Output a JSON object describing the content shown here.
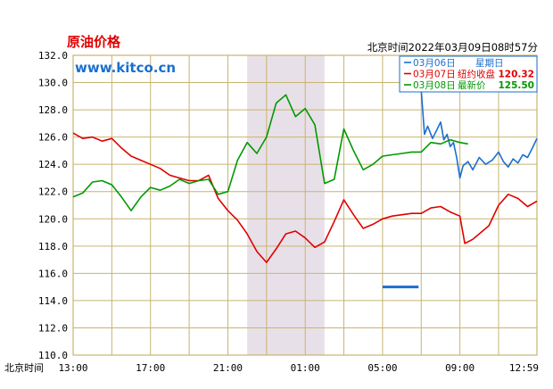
{
  "title": "原油价格",
  "logo_text": "www.kitco.cn",
  "timestamp": "北京时间2022年03月09日08时57分",
  "xaxis_prefix": "北京时间",
  "legend": [
    {
      "date": "03月06日",
      "label": "星期日",
      "value": "",
      "color": "#1a6fd1"
    },
    {
      "date": "03月07日",
      "label": "纽约收盘",
      "value": "120.32",
      "color": "#e00000"
    },
    {
      "date": "03月08日",
      "label": "最新价",
      "value": "125.50",
      "color": "#009900"
    }
  ],
  "colors": {
    "frame": "#c8b470",
    "shade": "#e8e0e8",
    "title": "#e00000",
    "logo": "#1a6fd1"
  },
  "chart_data": {
    "type": "line",
    "title": "原油价格",
    "xlabel": "北京时间",
    "ylabel": "",
    "ylim": [
      110,
      132
    ],
    "y_ticks": [
      "132.0",
      "130.0",
      "128.0",
      "126.0",
      "124.0",
      "122.0",
      "120.0",
      "118.0",
      "116.0",
      "114.0",
      "112.0",
      "110.0"
    ],
    "x_ticks": [
      "13:00",
      "17:00",
      "21:00",
      "01:00",
      "05:00",
      "09:00",
      "12:59"
    ],
    "shaded_region": [
      "22:00",
      "02:00"
    ],
    "grid": true,
    "legend_position": "top-right",
    "series": [
      {
        "name": "03月06日",
        "color": "#1a6fd1",
        "points": [
          [
            "05:00",
            115.0
          ],
          [
            "07:00",
            115.0
          ],
          [
            "07:00",
            129.4
          ],
          [
            "07:10",
            126.2
          ],
          [
            "07:20",
            126.8
          ],
          [
            "07:35",
            125.9
          ],
          [
            "07:50",
            126.6
          ],
          [
            "08:00",
            127.1
          ],
          [
            "08:10",
            125.8
          ],
          [
            "08:20",
            126.2
          ],
          [
            "08:30",
            125.3
          ],
          [
            "08:40",
            125.6
          ],
          [
            "08:50",
            124.5
          ],
          [
            "09:00",
            123.0
          ],
          [
            "09:10",
            123.9
          ],
          [
            "09:25",
            124.2
          ],
          [
            "09:40",
            123.6
          ],
          [
            "10:00",
            124.5
          ],
          [
            "10:20",
            124.0
          ],
          [
            "10:40",
            124.3
          ],
          [
            "11:00",
            124.9
          ],
          [
            "11:15",
            124.2
          ],
          [
            "11:30",
            123.8
          ],
          [
            "11:45",
            124.4
          ],
          [
            "12:00",
            124.1
          ],
          [
            "12:15",
            124.7
          ],
          [
            "12:30",
            124.5
          ],
          [
            "12:45",
            125.2
          ],
          [
            "12:59",
            125.9
          ]
        ]
      },
      {
        "name": "03月07日",
        "color": "#e00000",
        "points": [
          [
            "13:00",
            126.3
          ],
          [
            "13:30",
            125.9
          ],
          [
            "14:00",
            126.0
          ],
          [
            "14:30",
            125.7
          ],
          [
            "15:00",
            125.9
          ],
          [
            "15:30",
            125.2
          ],
          [
            "16:00",
            124.6
          ],
          [
            "16:30",
            124.3
          ],
          [
            "17:00",
            124.0
          ],
          [
            "17:30",
            123.7
          ],
          [
            "18:00",
            123.2
          ],
          [
            "18:30",
            123.0
          ],
          [
            "19:00",
            122.8
          ],
          [
            "19:30",
            122.8
          ],
          [
            "20:00",
            123.2
          ],
          [
            "20:30",
            121.5
          ],
          [
            "21:00",
            120.6
          ],
          [
            "21:30",
            119.9
          ],
          [
            "22:00",
            118.9
          ],
          [
            "22:30",
            117.6
          ],
          [
            "23:00",
            116.8
          ],
          [
            "23:30",
            117.8
          ],
          [
            "00:00",
            118.9
          ],
          [
            "00:30",
            119.1
          ],
          [
            "01:00",
            118.6
          ],
          [
            "01:30",
            117.9
          ],
          [
            "02:00",
            118.3
          ],
          [
            "02:30",
            119.8
          ],
          [
            "03:00",
            121.4
          ],
          [
            "03:30",
            120.3
          ],
          [
            "04:00",
            119.3
          ],
          [
            "04:30",
            119.6
          ],
          [
            "05:00",
            120.0
          ],
          [
            "05:30",
            120.2
          ],
          [
            "06:00",
            120.3
          ],
          [
            "06:30",
            120.4
          ],
          [
            "07:00",
            120.4
          ],
          [
            "07:30",
            120.8
          ],
          [
            "08:00",
            120.9
          ],
          [
            "08:30",
            120.5
          ],
          [
            "09:00",
            120.2
          ],
          [
            "09:15",
            118.2
          ],
          [
            "09:40",
            118.5
          ],
          [
            "10:00",
            118.9
          ],
          [
            "10:30",
            119.5
          ],
          [
            "11:00",
            121.0
          ],
          [
            "11:30",
            121.8
          ],
          [
            "12:00",
            121.5
          ],
          [
            "12:30",
            120.9
          ],
          [
            "12:59",
            121.3
          ]
        ]
      },
      {
        "name": "03月08日",
        "color": "#009900",
        "points": [
          [
            "13:00",
            121.6
          ],
          [
            "13:30",
            121.9
          ],
          [
            "14:00",
            122.7
          ],
          [
            "14:30",
            122.8
          ],
          [
            "15:00",
            122.5
          ],
          [
            "15:30",
            121.6
          ],
          [
            "16:00",
            120.6
          ],
          [
            "16:30",
            121.6
          ],
          [
            "17:00",
            122.3
          ],
          [
            "17:30",
            122.1
          ],
          [
            "18:00",
            122.4
          ],
          [
            "18:30",
            122.9
          ],
          [
            "19:00",
            122.6
          ],
          [
            "19:30",
            122.8
          ],
          [
            "20:00",
            122.9
          ],
          [
            "20:30",
            121.8
          ],
          [
            "21:00",
            122.0
          ],
          [
            "21:30",
            124.3
          ],
          [
            "22:00",
            125.6
          ],
          [
            "22:30",
            124.8
          ],
          [
            "23:00",
            126.0
          ],
          [
            "23:30",
            128.5
          ],
          [
            "00:00",
            129.1
          ],
          [
            "00:30",
            127.5
          ],
          [
            "01:00",
            128.1
          ],
          [
            "01:30",
            126.9
          ],
          [
            "02:00",
            122.6
          ],
          [
            "02:30",
            122.9
          ],
          [
            "03:00",
            126.6
          ],
          [
            "03:30",
            125.0
          ],
          [
            "04:00",
            123.6
          ],
          [
            "04:30",
            124.0
          ],
          [
            "05:00",
            124.6
          ],
          [
            "05:30",
            124.7
          ],
          [
            "06:00",
            124.8
          ],
          [
            "06:30",
            124.9
          ],
          [
            "07:00",
            124.9
          ],
          [
            "07:30",
            125.6
          ],
          [
            "08:00",
            125.5
          ],
          [
            "08:30",
            125.8
          ],
          [
            "09:00",
            125.6
          ],
          [
            "09:25",
            125.5
          ]
        ]
      }
    ]
  }
}
